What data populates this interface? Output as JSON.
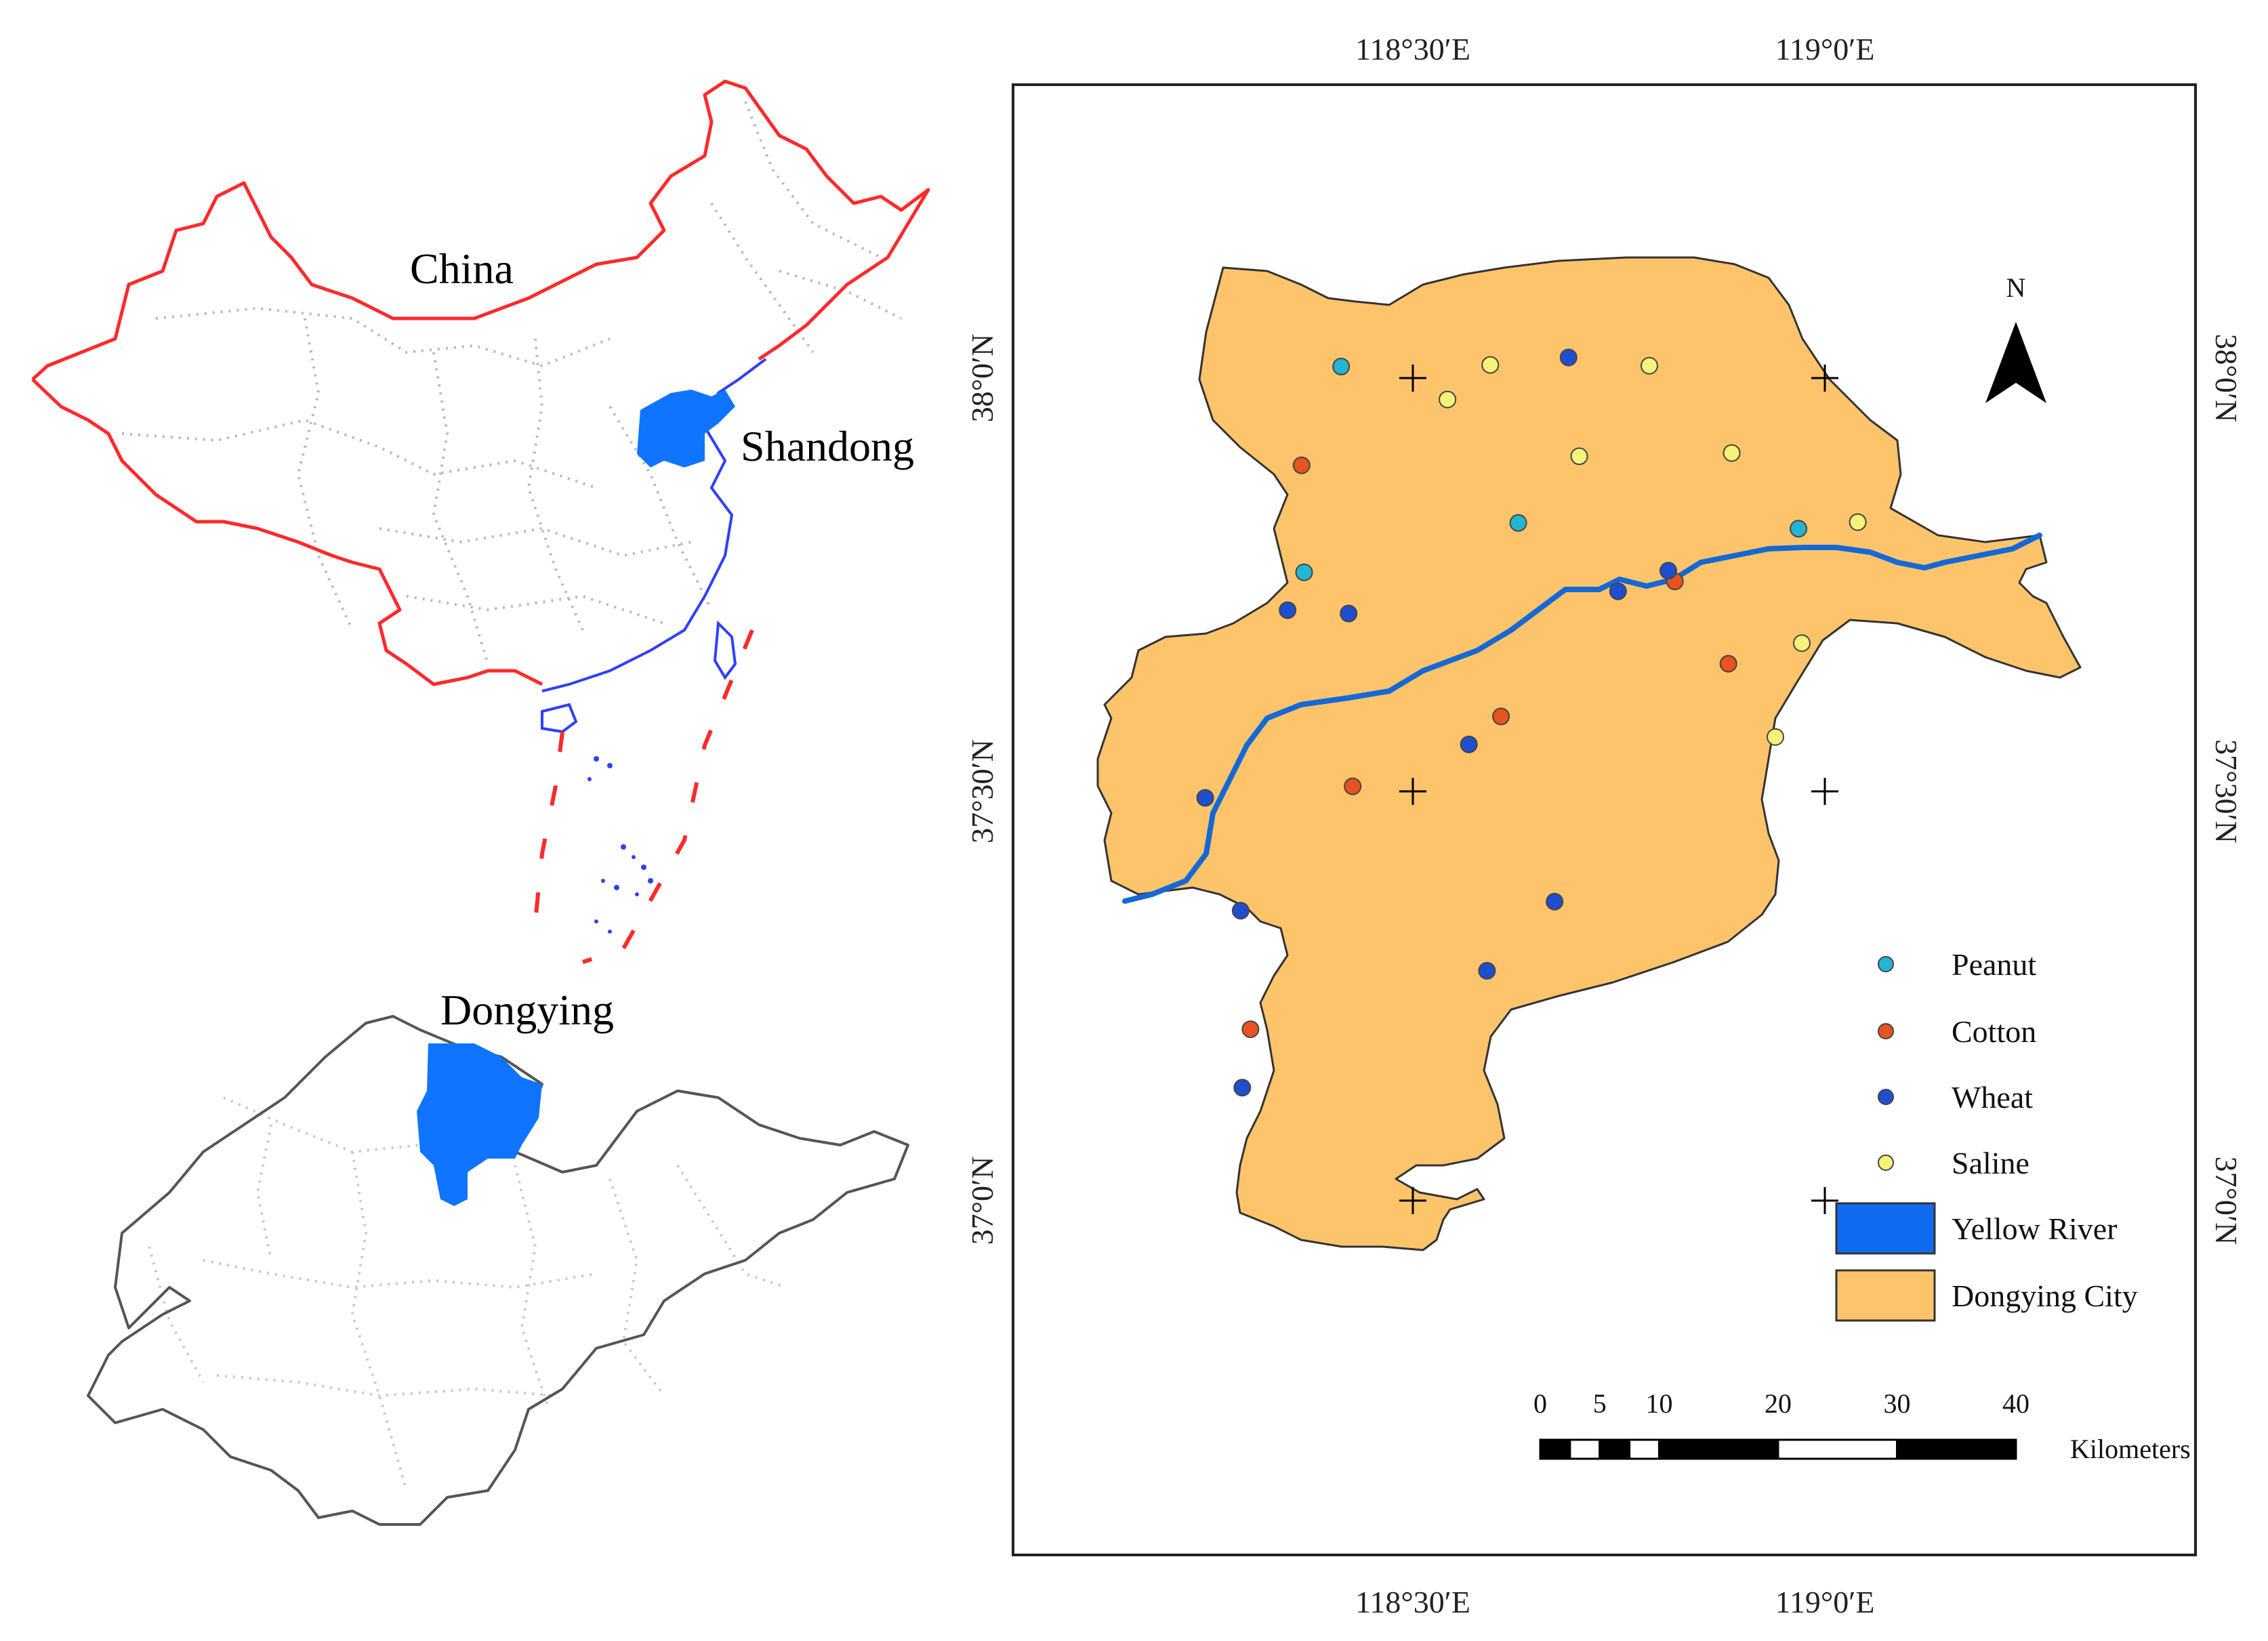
{
  "inset_china": {
    "label": "China",
    "province_label": "Shandong",
    "colors": {
      "border": "#ff2a2a",
      "highlight": "#0f74ff",
      "coast": "#2f3fff",
      "internal": "#b8b8b8"
    }
  },
  "inset_shandong": {
    "label": "Dongying",
    "colors": {
      "outline": "#555555",
      "highlight": "#0f74ff",
      "internal": "#c8c8c8"
    }
  },
  "main_map": {
    "top_lon_labels": [
      "118°30′E",
      "119°0′E"
    ],
    "bottom_lon_labels": [
      "118°30′E",
      "119°0′E"
    ],
    "left_lat_labels": [
      "38°0′N",
      "37°30′N",
      "37°0′N"
    ],
    "right_lat_labels": [
      "38°0′N",
      "37°30′N",
      "37°0′N"
    ],
    "north_arrow": {
      "label": "N",
      "icon": "north-arrow-icon"
    },
    "colors": {
      "city_fill": "#fdc46b",
      "river": "#1568d6",
      "frame": "#222222"
    },
    "legend": {
      "items": [
        {
          "key": "peanut",
          "label": "Peanut",
          "color": "#23b5d3",
          "symbol": "point"
        },
        {
          "key": "cotton",
          "label": "Cotton",
          "color": "#e8531f",
          "symbol": "point"
        },
        {
          "key": "wheat",
          "label": "Wheat",
          "color": "#1f4fcf",
          "symbol": "point"
        },
        {
          "key": "saline",
          "label": "Saline",
          "color": "#f6f37a",
          "symbol": "point"
        },
        {
          "key": "river",
          "label": "Yellow River",
          "color": "#0f6cf0",
          "symbol": "box"
        },
        {
          "key": "city",
          "label": "Dongying City",
          "color": "#fdc46b",
          "symbol": "box"
        }
      ]
    },
    "scale_bar": {
      "ticks": [
        "0",
        "5",
        "10",
        "20",
        "30",
        "40"
      ],
      "unit": "Kilometers"
    },
    "sample_points": {
      "peanut": [
        [
          118.413,
          38.014
        ],
        [
          118.628,
          37.824
        ],
        [
          118.368,
          37.764
        ],
        [
          118.968,
          37.817
        ]
      ],
      "cotton": [
        [
          118.365,
          37.894
        ],
        [
          118.818,
          37.753
        ],
        [
          118.883,
          37.653
        ],
        [
          118.607,
          37.589
        ],
        [
          118.427,
          37.504
        ],
        [
          118.303,
          37.209
        ]
      ],
      "wheat": [
        [
          118.689,
          38.025
        ],
        [
          118.749,
          37.741
        ],
        [
          118.81,
          37.766
        ],
        [
          118.348,
          37.718
        ],
        [
          118.422,
          37.714
        ],
        [
          118.568,
          37.555
        ],
        [
          118.248,
          37.49
        ],
        [
          118.291,
          37.353
        ],
        [
          118.672,
          37.364
        ],
        [
          118.59,
          37.28
        ],
        [
          118.293,
          37.138
        ]
      ],
      "saline": [
        [
          118.594,
          38.016
        ],
        [
          118.787,
          38.015
        ],
        [
          118.542,
          37.974
        ],
        [
          118.702,
          37.905
        ],
        [
          118.887,
          37.909
        ],
        [
          119.04,
          37.825
        ],
        [
          118.972,
          37.678
        ],
        [
          118.94,
          37.564
        ]
      ]
    }
  }
}
